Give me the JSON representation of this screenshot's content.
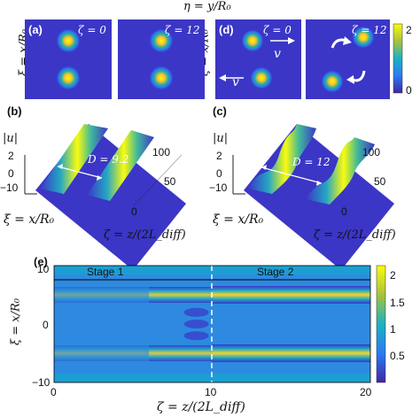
{
  "header": {
    "eta_label": "η = y/R₀"
  },
  "top_panels": {
    "ylabel": "ξ = x/R₀",
    "a": {
      "tag": "(a)",
      "zeta_left": "ζ = 0",
      "zeta_right": "ζ = 12"
    },
    "d": {
      "tag": "(d)",
      "zeta_left": "ζ = 0",
      "zeta_right": "ζ = 12",
      "v_label": "v"
    },
    "colorbar": {
      "max": "2",
      "min": "0"
    }
  },
  "panel_b": {
    "tag": "(b)",
    "zlabel": "|u|",
    "z_ticks": [
      "2",
      "0",
      "−10"
    ],
    "dist_label": "D = 9.2",
    "zeta_ticks": [
      "100",
      "50",
      "0"
    ],
    "xlabel": "ξ = x/R₀",
    "ylabel": "ζ = z/(2L_diff)"
  },
  "panel_c": {
    "tag": "(c)",
    "zlabel": "|u|",
    "z_ticks": [
      "2",
      "0",
      "−10"
    ],
    "dist_label": "D = 12",
    "zeta_ticks": [
      "100",
      "50",
      "0"
    ],
    "xlabel": "ξ = x/R₀",
    "ylabel": "ζ = z/(2L_diff)"
  },
  "panel_e": {
    "tag": "(e)",
    "stage1": "Stage 1",
    "stage2": "Stage 2",
    "ylabel": "ξ = x/R₀",
    "xlabel": "ζ = z/(2L_diff)",
    "y_ticks": [
      "10",
      "0",
      "−10"
    ],
    "x_ticks": [
      "0",
      "10",
      "20"
    ],
    "cbar_ticks": [
      "2",
      "1.5",
      "1",
      "0.5"
    ]
  },
  "chart_data": {
    "type": "heatmap",
    "title": "",
    "xlabel": "ζ = z/(2L_diff)",
    "ylabel": "ξ = x/R₀",
    "xlim": [
      0,
      20
    ],
    "ylim": [
      -10,
      10
    ],
    "zlim": [
      0,
      2.2
    ],
    "series": [
      {
        "name": "Stage 1",
        "x_range": [
          0,
          10
        ]
      },
      {
        "name": "Stage 2",
        "x_range": [
          10,
          20
        ]
      }
    ],
    "beam_centers": [
      5,
      -5
    ]
  }
}
